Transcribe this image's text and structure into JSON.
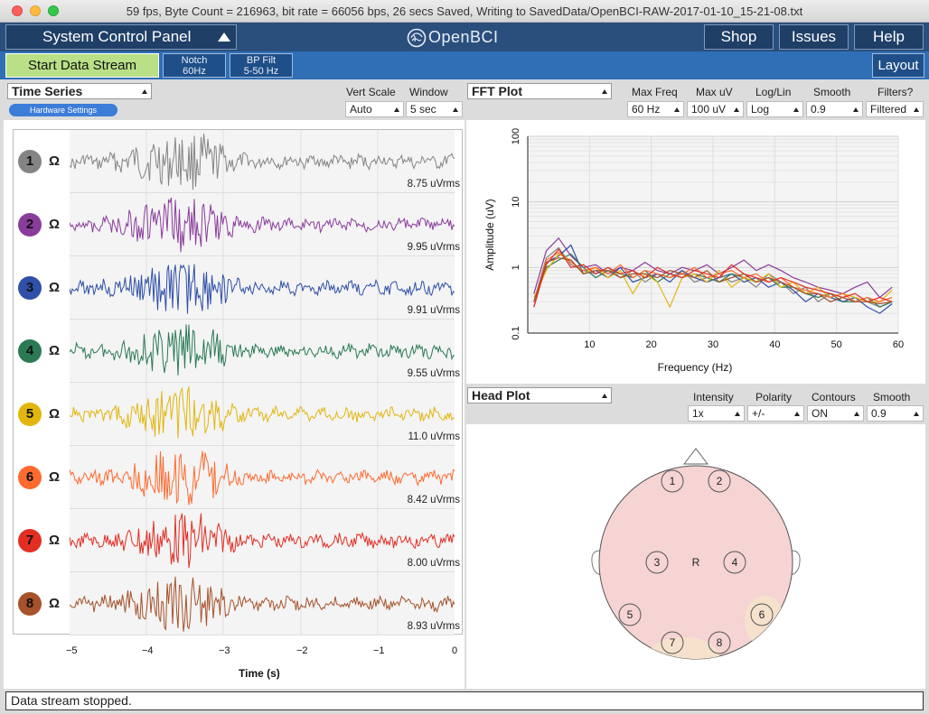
{
  "window": {
    "title": "59 fps, Byte Count = 216963, bit rate = 66056 bps, 26 secs Saved, Writing to SavedData/OpenBCI-RAW-2017-01-10_15-21-08.txt"
  },
  "nav": {
    "system_panel": "System Control Panel",
    "logo": "OpenBCI",
    "shop": "Shop",
    "issues": "Issues",
    "help": "Help"
  },
  "controls": {
    "start_stream": "Start Data Stream",
    "notch_1": "Notch",
    "notch_2": "60Hz",
    "bp_1": "BP Filt",
    "bp_2": "5-50 Hz",
    "layout": "Layout"
  },
  "time_series": {
    "widget": "Time Series",
    "vert_scale_label": "Vert Scale",
    "window_label": "Window",
    "vert_scale": "Auto",
    "window": "5 sec",
    "hardware_settings": "Hardware Settings",
    "ohm": "Ω",
    "channels": [
      {
        "num": "1",
        "color": "#848484",
        "rms": "8.75 uVrms"
      },
      {
        "num": "2",
        "color": "#8a3c9c",
        "rms": "9.95 uVrms"
      },
      {
        "num": "3",
        "color": "#2f4fa8",
        "rms": "9.91 uVrms"
      },
      {
        "num": "4",
        "color": "#2b7a55",
        "rms": "9.55 uVrms"
      },
      {
        "num": "5",
        "color": "#e2b60e",
        "rms": "11.0 uVrms"
      },
      {
        "num": "6",
        "color": "#ff6a2f",
        "rms": "8.42 uVrms"
      },
      {
        "num": "7",
        "color": "#e32e24",
        "rms": "8.00 uVrms"
      },
      {
        "num": "8",
        "color": "#a6522a",
        "rms": "8.93 uVrms"
      }
    ],
    "x_ticks": [
      "−5",
      "−4",
      "−3",
      "−2",
      "−1",
      "0"
    ],
    "x_label": "Time (s)"
  },
  "fft": {
    "widget": "FFT Plot",
    "labels": [
      "Max Freq",
      "Max uV",
      "Log/Lin",
      "Smooth",
      "Filters?"
    ],
    "values": [
      "60 Hz",
      "100 uV",
      "Log",
      "0.9",
      "Filtered"
    ],
    "y_label": "Amplitude (uV)",
    "x_label": "Frequency (Hz)",
    "y_ticks": [
      "100",
      "10",
      "1",
      "0.1"
    ],
    "x_ticks": [
      "10",
      "20",
      "30",
      "40",
      "50",
      "60"
    ]
  },
  "head": {
    "widget": "Head Plot",
    "labels": [
      "Intensity",
      "Polarity",
      "Contours",
      "Smooth"
    ],
    "values": [
      "1x",
      "+/-",
      "ON",
      "0.9"
    ],
    "ref": "R",
    "electrodes": [
      "1",
      "2",
      "3",
      "4",
      "5",
      "6",
      "7",
      "8"
    ]
  },
  "status": "Data stream stopped.",
  "chart_data": {
    "type": "line",
    "title": "",
    "xlabel": "Frequency (Hz)",
    "ylabel": "Amplitude (uV)",
    "xlim": [
      0,
      60
    ],
    "ylim": [
      0.1,
      100
    ],
    "yscale": "log",
    "grid": true,
    "x": [
      1,
      3,
      5,
      7,
      9,
      11,
      13,
      15,
      17,
      19,
      21,
      23,
      25,
      27,
      29,
      31,
      33,
      35,
      37,
      39,
      41,
      43,
      45,
      47,
      49,
      51,
      53,
      55,
      57,
      59
    ],
    "series": [
      {
        "color": "#848484",
        "values": [
          0.3,
          1.4,
          2.0,
          1.1,
          0.9,
          0.8,
          1.0,
          0.7,
          0.9,
          0.6,
          0.8,
          0.7,
          0.9,
          0.6,
          0.7,
          0.8,
          0.6,
          0.7,
          0.5,
          0.8,
          0.6,
          0.4,
          0.5,
          0.3,
          0.4,
          0.3,
          0.35,
          0.3,
          0.25,
          0.3
        ]
      },
      {
        "color": "#8a3c9c",
        "values": [
          0.4,
          1.8,
          2.8,
          1.5,
          1.0,
          1.1,
          0.8,
          1.0,
          0.9,
          1.2,
          0.9,
          0.8,
          1.0,
          0.9,
          1.1,
          0.8,
          1.0,
          1.3,
          0.9,
          1.1,
          0.9,
          0.7,
          0.6,
          0.5,
          0.45,
          0.4,
          0.5,
          0.6,
          0.35,
          0.5
        ]
      },
      {
        "color": "#2f4fa8",
        "values": [
          0.25,
          1.2,
          1.5,
          2.2,
          0.8,
          0.9,
          0.7,
          1.0,
          0.6,
          0.7,
          0.8,
          0.6,
          0.9,
          0.7,
          0.6,
          0.7,
          0.8,
          0.6,
          0.7,
          0.5,
          0.6,
          0.45,
          0.3,
          0.4,
          0.35,
          0.3,
          0.35,
          0.25,
          0.2,
          0.28
        ]
      },
      {
        "color": "#2b7a55",
        "values": [
          0.3,
          1.0,
          1.3,
          1.6,
          1.0,
          0.7,
          0.9,
          0.8,
          0.7,
          0.9,
          0.6,
          0.8,
          0.7,
          0.8,
          0.7,
          0.6,
          0.8,
          0.7,
          0.6,
          0.7,
          0.5,
          0.5,
          0.4,
          0.35,
          0.4,
          0.3,
          0.3,
          0.35,
          0.25,
          0.3
        ]
      },
      {
        "color": "#e2b60e",
        "values": [
          0.35,
          0.9,
          1.6,
          1.3,
          0.8,
          1.0,
          0.7,
          0.9,
          0.4,
          0.8,
          0.6,
          0.25,
          0.7,
          0.8,
          0.6,
          0.9,
          0.5,
          0.7,
          0.6,
          0.8,
          0.5,
          0.6,
          0.4,
          0.5,
          0.35,
          0.4,
          0.35,
          0.3,
          0.3,
          0.45
        ]
      },
      {
        "color": "#ff6a2f",
        "values": [
          0.3,
          1.3,
          1.7,
          1.2,
          0.9,
          1.0,
          0.8,
          1.1,
          0.7,
          0.9,
          0.8,
          0.7,
          0.8,
          1.0,
          0.7,
          0.8,
          0.9,
          0.7,
          0.8,
          0.6,
          0.7,
          0.5,
          0.45,
          0.4,
          0.35,
          0.4,
          0.3,
          0.35,
          0.3,
          0.35
        ]
      },
      {
        "color": "#e32e24",
        "values": [
          0.25,
          1.1,
          1.9,
          1.0,
          1.1,
          0.8,
          1.0,
          0.8,
          0.9,
          0.7,
          1.0,
          0.8,
          0.7,
          0.9,
          0.8,
          0.7,
          1.1,
          0.8,
          0.7,
          0.6,
          0.7,
          0.6,
          0.5,
          0.45,
          0.4,
          0.35,
          0.4,
          0.3,
          0.35,
          0.3
        ]
      },
      {
        "color": "#a6522a",
        "values": [
          0.3,
          1.2,
          1.4,
          1.3,
          0.8,
          0.9,
          0.9,
          0.7,
          0.8,
          0.8,
          0.7,
          0.9,
          0.8,
          0.7,
          0.9,
          0.6,
          0.7,
          0.8,
          0.6,
          0.7,
          0.6,
          0.5,
          0.4,
          0.4,
          0.3,
          0.35,
          0.3,
          0.3,
          0.28,
          0.3
        ]
      }
    ]
  }
}
